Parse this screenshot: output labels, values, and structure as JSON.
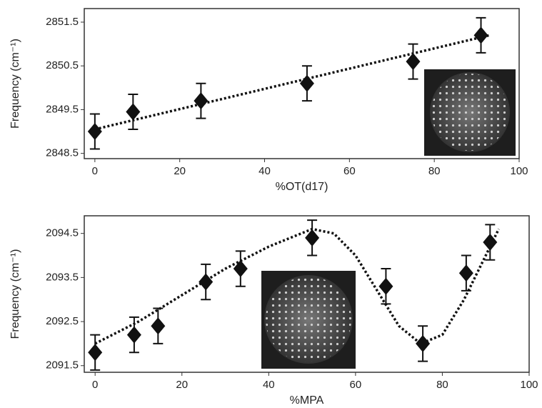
{
  "chart_data": [
    {
      "type": "scatter",
      "xlabel": "%OT(d17)",
      "ylabel": "Frequency (cm⁻¹)",
      "x": [
        0,
        9,
        25,
        50,
        75,
        91
      ],
      "values": [
        2849.0,
        2849.45,
        2849.7,
        2850.1,
        2850.6,
        2851.2
      ],
      "errors": [
        0.4,
        0.4,
        0.4,
        0.4,
        0.4,
        0.4
      ],
      "fit": {
        "x": [
          0,
          93
        ],
        "values": [
          2849.05,
          2851.2
        ]
      },
      "color": "#111111",
      "xlim": [
        -2.5,
        100
      ],
      "xticks": [
        0,
        20,
        40,
        60,
        80,
        100
      ],
      "ylim": [
        2848.38,
        2851.81
      ],
      "yticks": [
        2848.5,
        2849.5,
        2850.5,
        2851.5
      ]
    },
    {
      "type": "scatter",
      "xlabel": "%MPA",
      "ylabel": "Frequency (cm⁻¹)",
      "x": [
        0,
        9,
        14.5,
        25.5,
        33.5,
        50,
        67,
        75.5,
        85.5,
        91
      ],
      "values": [
        2091.8,
        2092.2,
        2092.4,
        2093.4,
        2093.7,
        2094.4,
        2093.3,
        2092.0,
        2093.6,
        2094.3
      ],
      "errors": [
        0.4,
        0.4,
        0.4,
        0.4,
        0.4,
        0.4,
        0.4,
        0.4,
        0.4,
        0.4
      ],
      "fit": {
        "x": [
          0,
          10,
          20,
          30,
          40,
          50,
          55,
          60,
          65,
          70,
          75,
          80,
          85,
          90,
          93
        ],
        "values": [
          2092.0,
          2092.5,
          2093.1,
          2093.7,
          2094.2,
          2094.6,
          2094.5,
          2094.0,
          2093.2,
          2092.4,
          2092.0,
          2092.2,
          2093.0,
          2094.0,
          2094.6
        ]
      },
      "color": "#111111",
      "xlim": [
        -2.5,
        100
      ],
      "xticks": [
        0,
        20,
        40,
        60,
        80,
        100
      ],
      "ylim": [
        2091.35,
        2094.9
      ],
      "yticks": [
        2091.5,
        2092.5,
        2093.5,
        2094.5
      ]
    }
  ]
}
